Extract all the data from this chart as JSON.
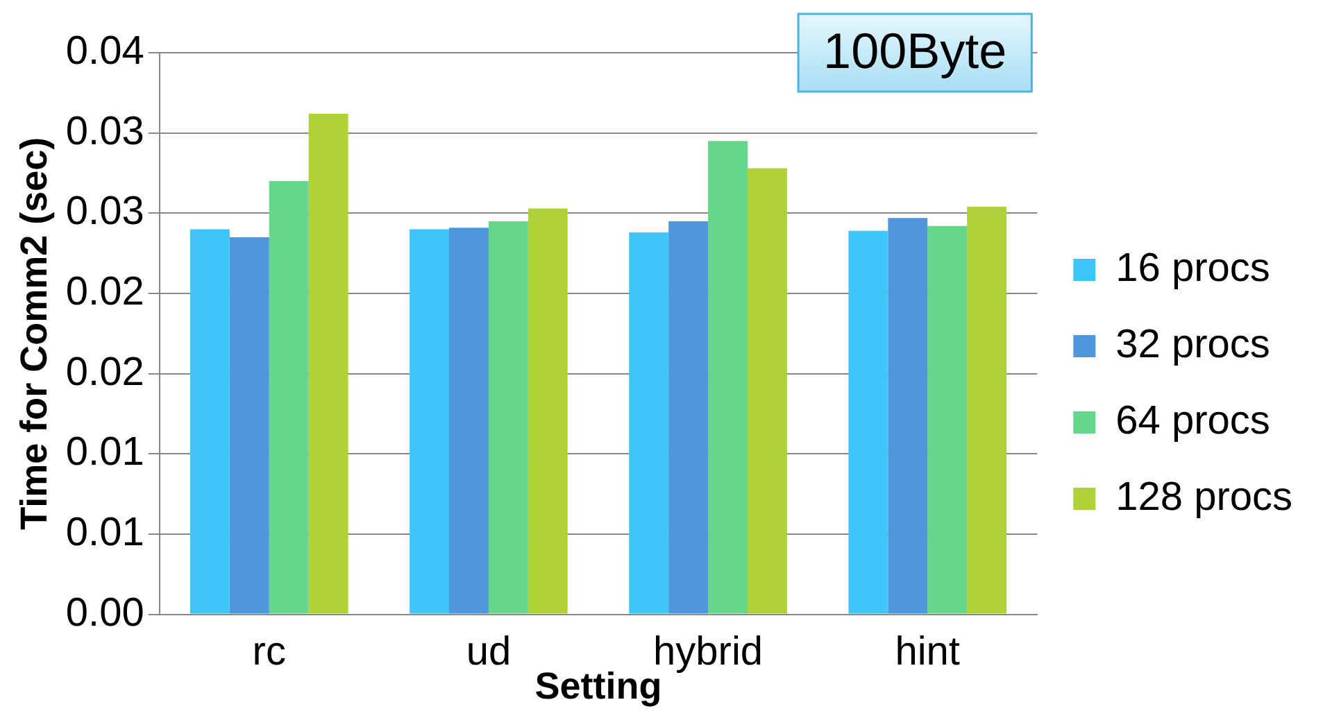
{
  "chart_data": {
    "type": "bar",
    "xlabel": "Setting",
    "ylabel": "Time for Comm2 (sec)",
    "annotations": [
      "100Byte"
    ],
    "categories": [
      "rc",
      "ud",
      "hybrid",
      "hint"
    ],
    "series": [
      {
        "name": "16 procs",
        "color": "#3fc6f8",
        "values": [
          0.024,
          0.024,
          0.0238,
          0.0239
        ]
      },
      {
        "name": "32 procs",
        "color": "#4f97dd",
        "values": [
          0.0235,
          0.0241,
          0.0245,
          0.0247
        ]
      },
      {
        "name": "64 procs",
        "color": "#66d68a",
        "values": [
          0.027,
          0.0245,
          0.0295,
          0.0242
        ]
      },
      {
        "name": "128 procs",
        "color": "#b0d236",
        "values": [
          0.0312,
          0.0253,
          0.0278,
          0.0254
        ]
      }
    ],
    "ylim": [
      0,
      0.035
    ],
    "yticks": [
      {
        "value": 0,
        "label": "0.00"
      },
      {
        "value": 0.005,
        "label": "0.01"
      },
      {
        "value": 0.01,
        "label": "0.01"
      },
      {
        "value": 0.015,
        "label": "0.02"
      },
      {
        "value": 0.02,
        "label": "0.02"
      },
      {
        "value": 0.025,
        "label": "0.03"
      },
      {
        "value": 0.03,
        "label": "0.03"
      },
      {
        "value": 0.035,
        "label": "0.04"
      }
    ],
    "grid": "y",
    "legend": "right"
  }
}
